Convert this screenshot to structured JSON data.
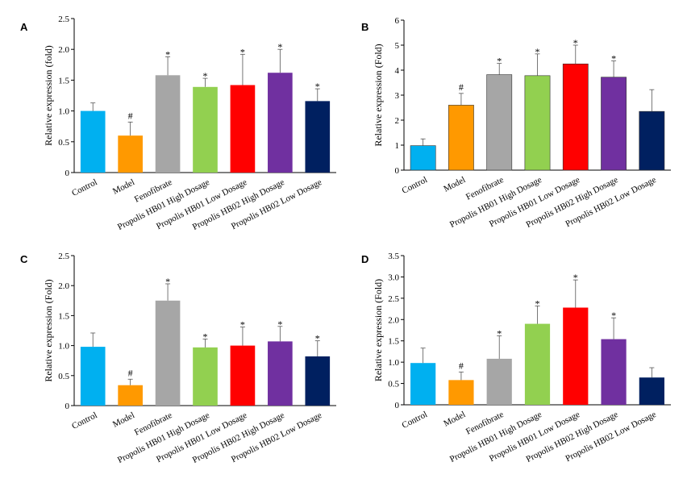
{
  "colors": {
    "Control": "#00b0f0",
    "Model": "#ff9900",
    "Fenofibrate": "#a6a6a6",
    "Propolis HB01 High Dosage": "#92d050",
    "Propolis HB01 Low Dosage": "#ff0000",
    "Propolis HB02 High Dosage": "#7030a0",
    "Propolis HB02 Low Dosage": "#002060"
  },
  "chart_data": [
    {
      "panel": "A",
      "type": "bar",
      "ylabel": "Relative expression (fold)",
      "ylim": [
        0,
        2.5
      ],
      "yticks": [
        "0",
        "0.5",
        "1.0",
        "1.5",
        "2.0",
        "2.5"
      ],
      "categories": [
        "Control",
        "Model",
        "Fenofibrate",
        "Propolis HB01 High Dosage",
        "Propolis HB01 Low Dosage",
        "Propolis HB02 High Dosage",
        "Propolis HB02 Low Dosage"
      ],
      "values": [
        1.0,
        0.6,
        1.58,
        1.39,
        1.42,
        1.62,
        1.16
      ],
      "errors": [
        0.13,
        0.22,
        0.3,
        0.14,
        0.5,
        0.38,
        0.2
      ],
      "marks": [
        "",
        "#",
        "*",
        "*",
        "*",
        "*",
        "*"
      ]
    },
    {
      "panel": "B",
      "type": "bar",
      "ylabel": "Relative expression (Fold)",
      "ylim": [
        0,
        6
      ],
      "yticks": [
        "0",
        "1",
        "2",
        "3",
        "4",
        "5",
        "6"
      ],
      "categories": [
        "Control",
        "Model",
        "Fenofibrate",
        "Propolis HB01 High Dosage",
        "Propolis HB01 Low Dosage",
        "Propolis HB02 High Dosage",
        "Propolis HB02 Low Dosage"
      ],
      "values": [
        0.98,
        2.6,
        3.82,
        3.78,
        4.25,
        3.72,
        2.35
      ],
      "errors": [
        0.27,
        0.47,
        0.45,
        0.87,
        0.75,
        0.65,
        0.87
      ],
      "marks": [
        "",
        "#",
        "*",
        "*",
        "*",
        "*",
        ""
      ]
    },
    {
      "panel": "C",
      "type": "bar",
      "ylabel": "Relative expression (Fold)",
      "ylim": [
        0,
        2.5
      ],
      "yticks": [
        "0",
        "0.5",
        "1.0",
        "1.5",
        "2.0",
        "2.5"
      ],
      "categories": [
        "Control",
        "Model",
        "Fenofibrate",
        "Propolis HB01 High Dosage",
        "Propolis HB01 Low Dosage",
        "Propolis HB02 High Dosage",
        "Propolis HB02 Low Dosage"
      ],
      "values": [
        0.98,
        0.34,
        1.75,
        0.97,
        1.0,
        1.07,
        0.82
      ],
      "errors": [
        0.23,
        0.1,
        0.28,
        0.14,
        0.31,
        0.25,
        0.26
      ],
      "marks": [
        "",
        "#",
        "*",
        "*",
        "*",
        "*",
        "*"
      ]
    },
    {
      "panel": "D",
      "type": "bar",
      "ylabel": "Relative expression (Fold)",
      "ylim": [
        0,
        3.5
      ],
      "yticks": [
        "0",
        "0.5",
        "1.0",
        "1.5",
        "2.0",
        "2.5",
        "3.0",
        "3.5"
      ],
      "categories": [
        "Control",
        "Model",
        "Fenofibrate",
        "Propolis HB01 High Dosage",
        "Propolis HB01 Low Dosage",
        "Propolis HB02 High Dosage",
        "Propolis HB02 Low Dosage"
      ],
      "values": [
        0.98,
        0.58,
        1.08,
        1.9,
        2.28,
        1.54,
        0.64
      ],
      "errors": [
        0.35,
        0.19,
        0.54,
        0.42,
        0.65,
        0.5,
        0.23
      ],
      "marks": [
        "",
        "#",
        "*",
        "*",
        "*",
        "*",
        ""
      ]
    }
  ]
}
